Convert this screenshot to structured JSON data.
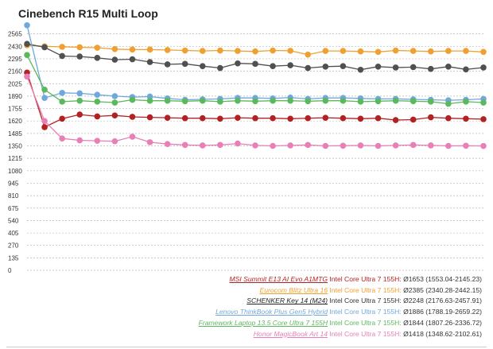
{
  "chart_data": {
    "type": "line",
    "title": "Cinebench R15 Multi Loop",
    "ylim": [
      0,
      2700
    ],
    "y_ticks": [
      0,
      135,
      270,
      405,
      540,
      675,
      810,
      945,
      1080,
      1215,
      1350,
      1485,
      1620,
      1755,
      1890,
      2025,
      2160,
      2295,
      2430,
      2565
    ],
    "grid": true,
    "x": [
      1,
      2,
      3,
      4,
      5,
      6,
      7,
      8,
      9,
      10,
      11,
      12,
      13,
      14,
      15,
      16,
      17,
      18,
      19,
      20,
      21,
      22,
      23,
      24,
      25,
      26,
      27
    ],
    "series": [
      {
        "name": "MSI Summit E13 AI Evo A1MTG",
        "cpu": "Intel Core Ultra 7 155H",
        "stats": "Ø1653 (1553.04-2145.23)",
        "color": "#b22222",
        "values": [
          2145,
          1553,
          1645,
          1690,
          1670,
          1680,
          1665,
          1660,
          1655,
          1650,
          1650,
          1645,
          1655,
          1650,
          1650,
          1645,
          1650,
          1655,
          1650,
          1645,
          1650,
          1630,
          1635,
          1660,
          1650,
          1645,
          1640
        ]
      },
      {
        "name": "Eurocom Blitz Ultra 16",
        "cpu": "Intel Core Ultra 7 155H",
        "stats": "Ø2385 (2340.28-2442.15)",
        "color": "#f0a030",
        "values": [
          2442,
          2430,
          2425,
          2420,
          2415,
          2400,
          2395,
          2395,
          2390,
          2385,
          2380,
          2385,
          2380,
          2375,
          2385,
          2382,
          2340,
          2380,
          2380,
          2375,
          2370,
          2385,
          2380,
          2375,
          2380,
          2380,
          2370
        ]
      },
      {
        "name": "SCHENKER Key 14 (M24)",
        "cpu": "Intel Core Ultra 7 155H",
        "stats": "Ø2248 (2176.63-2457.91)",
        "color": "#505050",
        "values": [
          2457,
          2420,
          2325,
          2320,
          2305,
          2285,
          2290,
          2260,
          2235,
          2240,
          2215,
          2195,
          2245,
          2240,
          2215,
          2225,
          2195,
          2210,
          2215,
          2176,
          2210,
          2200,
          2205,
          2185,
          2210,
          2180,
          2200
        ]
      },
      {
        "name": "Lenovo ThinkBook Plus Gen5 Hybrid",
        "cpu": "Intel Core Ultra 7 155H",
        "stats": "Ø1886 (1788.19-2659.22)",
        "color": "#6fa8dc",
        "values": [
          2659,
          1870,
          1925,
          1920,
          1905,
          1890,
          1880,
          1885,
          1865,
          1850,
          1855,
          1860,
          1870,
          1870,
          1865,
          1875,
          1860,
          1870,
          1870,
          1865,
          1860,
          1860,
          1855,
          1850,
          1845,
          1850,
          1860
        ]
      },
      {
        "name": "Framework Laptop 13.5 Core Ultra 7 155H",
        "cpu": "Intel Core Ultra 7 155H",
        "stats": "Ø1844 (1807.26-2336.72)",
        "color": "#5cb85c",
        "values": [
          2336,
          1960,
          1830,
          1840,
          1830,
          1820,
          1850,
          1840,
          1840,
          1835,
          1840,
          1830,
          1840,
          1835,
          1840,
          1840,
          1835,
          1840,
          1840,
          1830,
          1835,
          1840,
          1835,
          1830,
          1807,
          1830,
          1820
        ]
      },
      {
        "name": "Honor MagicBook Art 14",
        "cpu": "Intel Core Ultra 7 155H",
        "stats": "Ø1418 (1348.62-2102.61)",
        "color": "#e87fb6",
        "values": [
          2102,
          1620,
          1430,
          1410,
          1405,
          1400,
          1450,
          1390,
          1370,
          1360,
          1355,
          1360,
          1375,
          1355,
          1350,
          1355,
          1360,
          1350,
          1352,
          1355,
          1350,
          1355,
          1360,
          1355,
          1350,
          1352,
          1349
        ]
      }
    ]
  }
}
